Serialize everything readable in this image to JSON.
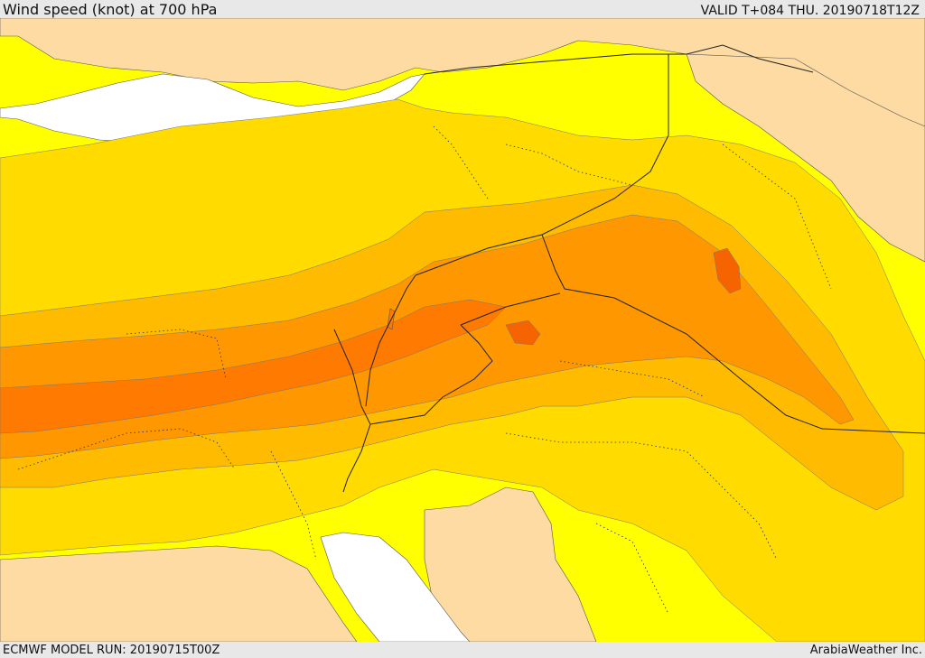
{
  "header": {
    "title": "Wind speed (knot) at 700 hPa",
    "valid": "VALID T+084 THU. 20190718T12Z"
  },
  "footer": {
    "run": "ECMWF MODEL RUN: 20190715T00Z",
    "credit": "ArabiaWeather Inc."
  },
  "colors": {
    "land": "#fddba3",
    "sea": "#ffffff",
    "band1": "#ffff00",
    "band2": "#ffdb00",
    "band3": "#ffbb00",
    "band4": "#ff9800",
    "band5": "#ff7a00",
    "band6": "#f56400",
    "frame": "#e8e8e8"
  }
}
